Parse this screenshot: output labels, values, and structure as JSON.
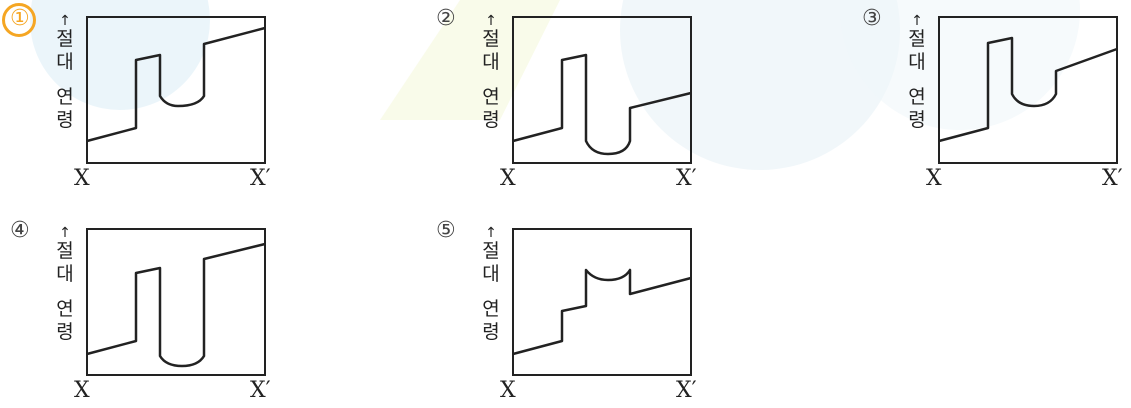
{
  "axis": {
    "arrow": "↑",
    "y_chars": [
      "절",
      "대",
      "연",
      "령"
    ],
    "x_start": "X",
    "x_end": "X′"
  },
  "options": [
    {
      "label": "①",
      "selected": true
    },
    {
      "label": "②",
      "selected": false
    },
    {
      "label": "③",
      "selected": false
    },
    {
      "label": "④",
      "selected": false
    },
    {
      "label": "⑤",
      "selected": false
    }
  ],
  "colors": {
    "highlight": "#f5a623",
    "line": "#222222"
  }
}
